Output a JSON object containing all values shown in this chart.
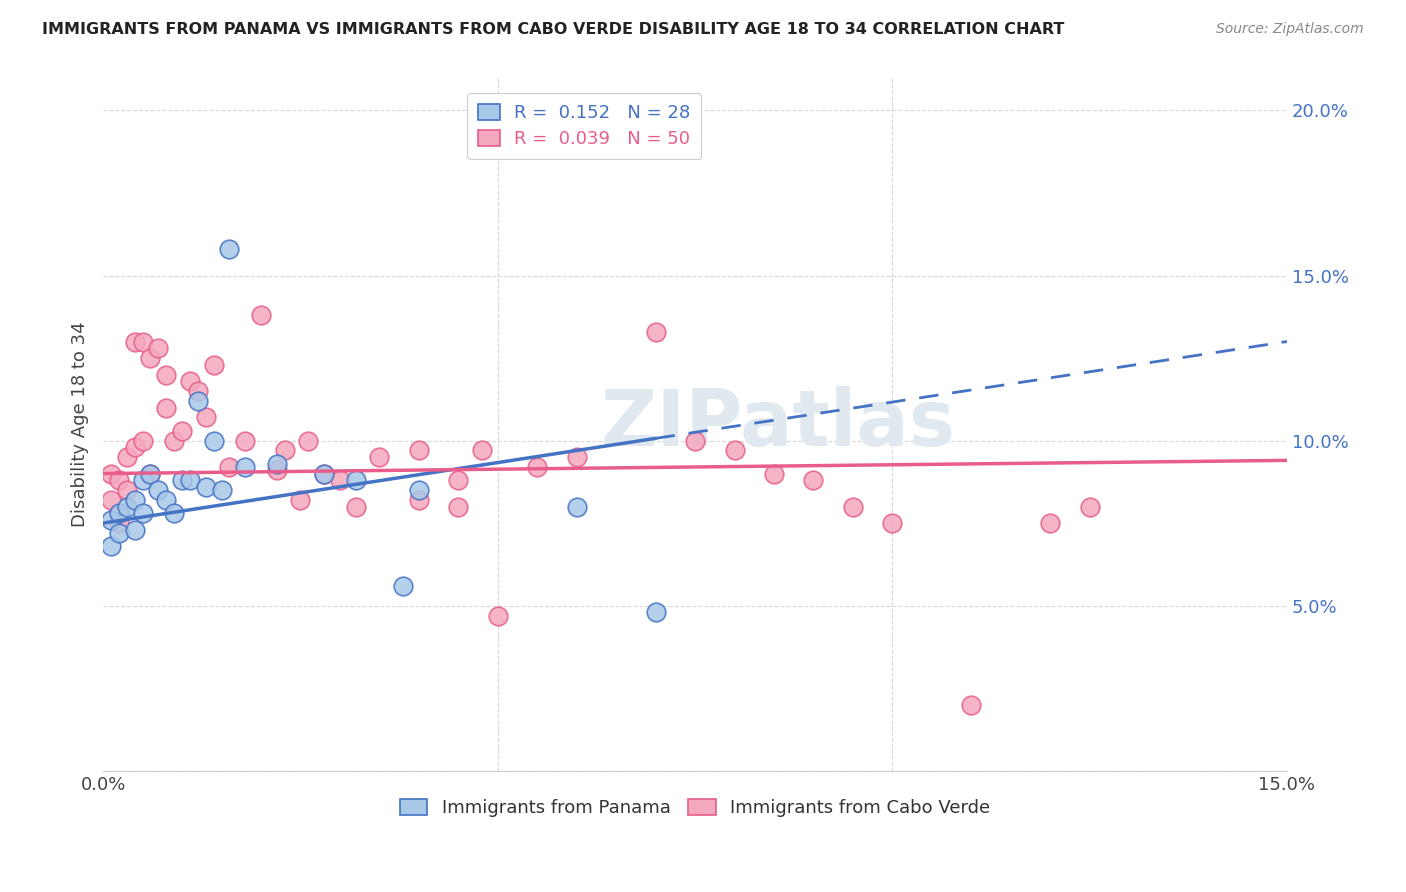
{
  "title": "IMMIGRANTS FROM PANAMA VS IMMIGRANTS FROM CABO VERDE DISABILITY AGE 18 TO 34 CORRELATION CHART",
  "source": "Source: ZipAtlas.com",
  "ylabel": "Disability Age 18 to 34",
  "xlim": [
    0.0,
    0.15
  ],
  "ylim": [
    0.0,
    0.21
  ],
  "legend_R1": "0.152",
  "legend_N1": "28",
  "legend_R2": "0.039",
  "legend_N2": "50",
  "color_panama": "#a8c8e8",
  "color_caboverde": "#f4a8be",
  "color_line_panama": "#4472c4",
  "color_line_caboverde": "#e85d8a",
  "panama_x": [
    0.001,
    0.001,
    0.002,
    0.002,
    0.003,
    0.004,
    0.004,
    0.005,
    0.005,
    0.006,
    0.007,
    0.008,
    0.009,
    0.01,
    0.011,
    0.012,
    0.013,
    0.014,
    0.015,
    0.016,
    0.018,
    0.022,
    0.028,
    0.032,
    0.038,
    0.04,
    0.06,
    0.07
  ],
  "panama_y": [
    0.076,
    0.068,
    0.072,
    0.078,
    0.08,
    0.073,
    0.082,
    0.078,
    0.088,
    0.09,
    0.085,
    0.082,
    0.078,
    0.088,
    0.088,
    0.112,
    0.086,
    0.1,
    0.085,
    0.158,
    0.092,
    0.093,
    0.09,
    0.088,
    0.056,
    0.085,
    0.08,
    0.048
  ],
  "caboverde_x": [
    0.001,
    0.001,
    0.002,
    0.002,
    0.003,
    0.003,
    0.004,
    0.004,
    0.005,
    0.005,
    0.006,
    0.006,
    0.007,
    0.008,
    0.008,
    0.009,
    0.01,
    0.011,
    0.012,
    0.013,
    0.014,
    0.016,
    0.018,
    0.02,
    0.022,
    0.023,
    0.025,
    0.026,
    0.028,
    0.03,
    0.032,
    0.035,
    0.04,
    0.04,
    0.045,
    0.045,
    0.048,
    0.05,
    0.055,
    0.06,
    0.07,
    0.075,
    0.08,
    0.085,
    0.09,
    0.095,
    0.1,
    0.11,
    0.12,
    0.125
  ],
  "caboverde_y": [
    0.09,
    0.082,
    0.088,
    0.075,
    0.095,
    0.085,
    0.13,
    0.098,
    0.1,
    0.13,
    0.125,
    0.09,
    0.128,
    0.12,
    0.11,
    0.1,
    0.103,
    0.118,
    0.115,
    0.107,
    0.123,
    0.092,
    0.1,
    0.138,
    0.091,
    0.097,
    0.082,
    0.1,
    0.09,
    0.088,
    0.08,
    0.095,
    0.082,
    0.097,
    0.088,
    0.08,
    0.097,
    0.047,
    0.092,
    0.095,
    0.133,
    0.1,
    0.097,
    0.09,
    0.088,
    0.08,
    0.075,
    0.02,
    0.075,
    0.08
  ],
  "watermark": "ZIPatlas",
  "background_color": "#ffffff",
  "grid_color": "#d8d8d8"
}
